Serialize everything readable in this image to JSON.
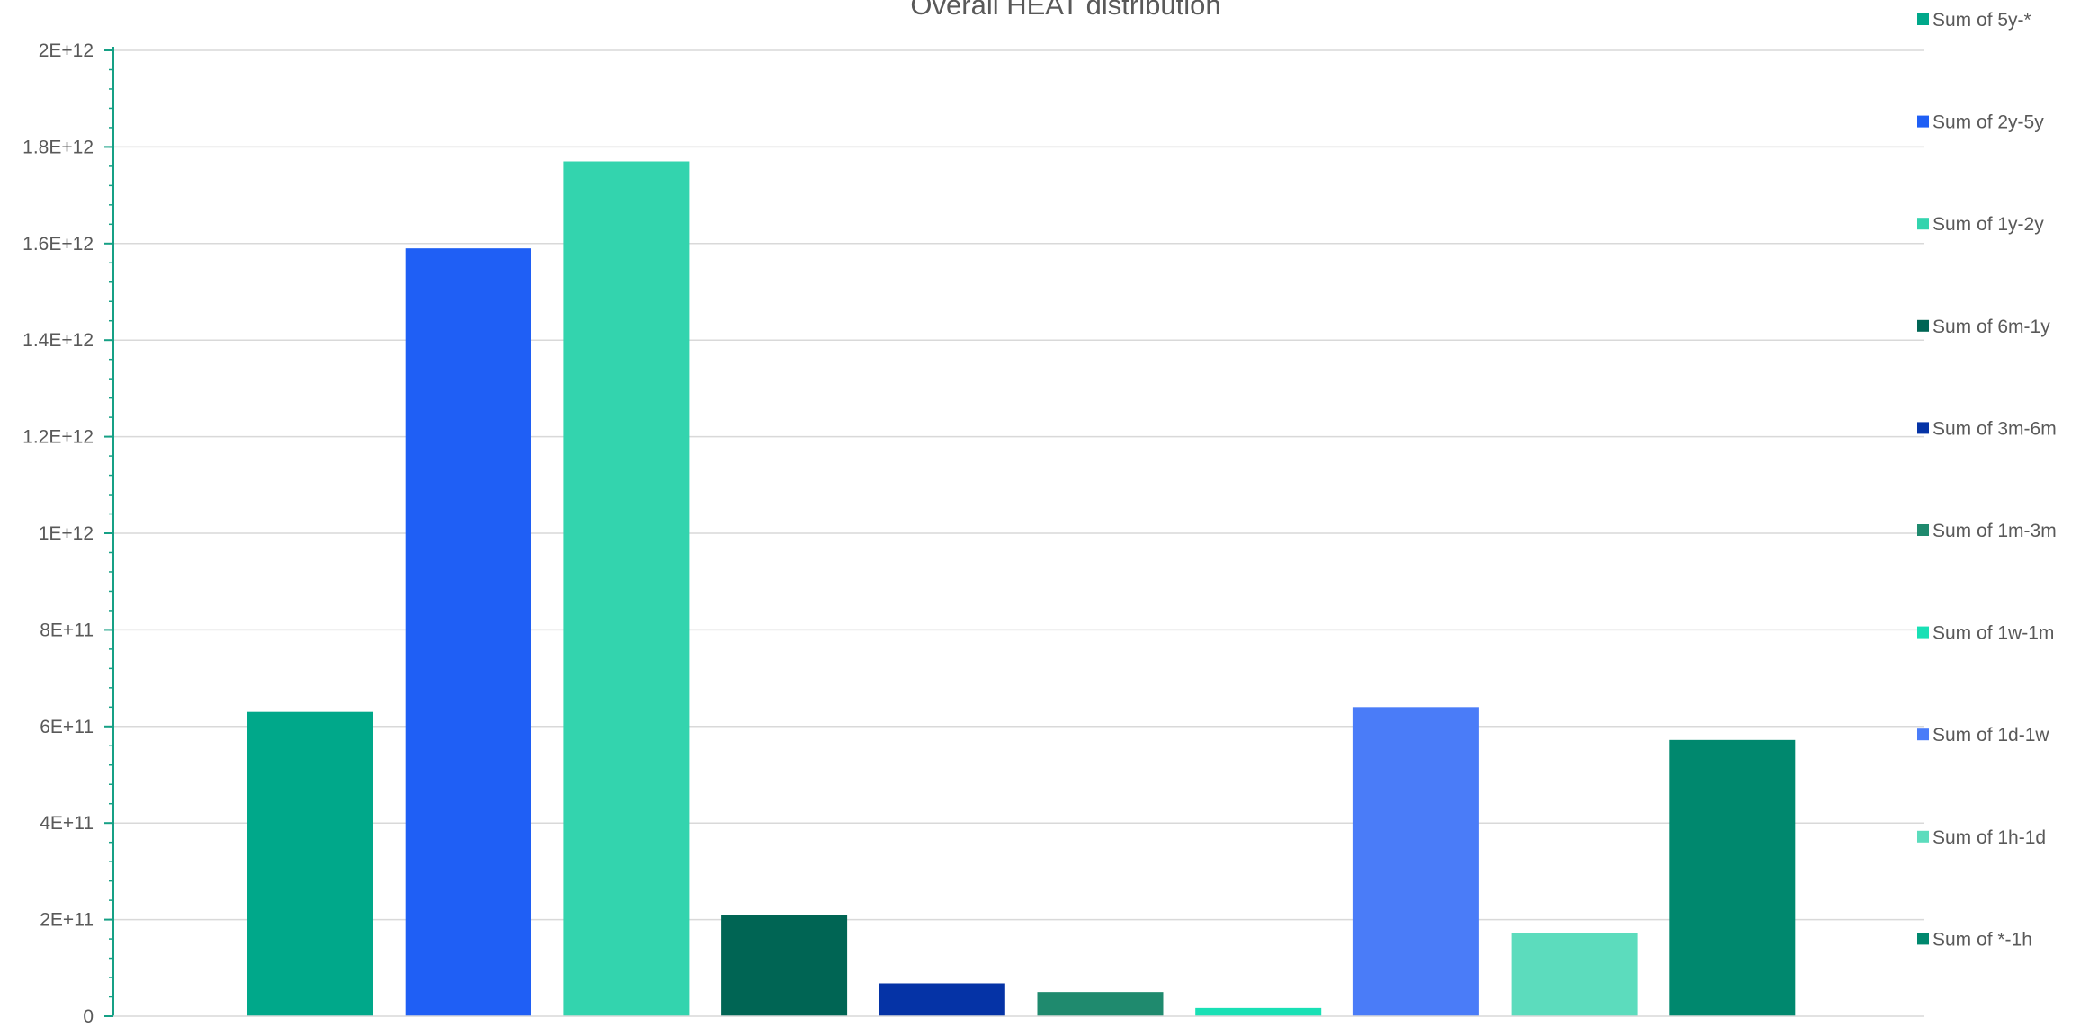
{
  "chart_data": {
    "type": "bar",
    "title": "Overall HEAT distribution",
    "xlabel": "",
    "ylabel": "",
    "ylim": [
      0,
      2000000000000
    ],
    "y_ticks": [
      0,
      200000000000,
      400000000000,
      600000000000,
      800000000000,
      1000000000000,
      1200000000000,
      1400000000000,
      1600000000000,
      1800000000000,
      2000000000000
    ],
    "y_tick_labels": [
      "0",
      "2E+11",
      "4E+11",
      "6E+11",
      "8E+11",
      "1E+12",
      "1.2E+12",
      "1.4E+12",
      "1.6E+12",
      "1.8E+12",
      "2E+12"
    ],
    "grid": true,
    "legend_position": "right",
    "series": [
      {
        "name": "Sum of 5y-*",
        "value": 630000000000,
        "color": "#00a88a"
      },
      {
        "name": "Sum of 2y-5y",
        "value": 1590000000000,
        "color": "#1f5ff5"
      },
      {
        "name": "Sum of 1y-2y",
        "value": 1770000000000,
        "color": "#33d4ae"
      },
      {
        "name": "Sum of 6m-1y",
        "value": 210000000000,
        "color": "#006554"
      },
      {
        "name": "Sum of 3m-6m",
        "value": 68000000000,
        "color": "#0533a6"
      },
      {
        "name": "Sum of 1m-3m",
        "value": 50000000000,
        "color": "#1f8a6e"
      },
      {
        "name": "Sum of 1w-1m",
        "value": 17000000000,
        "color": "#19e0b5"
      },
      {
        "name": "Sum of 1d-1w",
        "value": 640000000000,
        "color": "#4a7cf8"
      },
      {
        "name": "Sum of 1h-1d",
        "value": 173000000000,
        "color": "#5cdcbd"
      },
      {
        "name": "Sum of *-1h",
        "value": 572000000000,
        "color": "#00886e"
      }
    ]
  }
}
